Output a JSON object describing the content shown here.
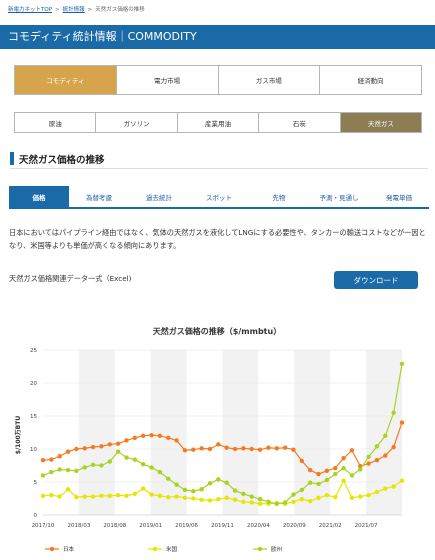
{
  "breadcrumb": {
    "items": [
      "新電力ネットTOP",
      "統計情報",
      "天然ガス価格の推移"
    ],
    "separator": ">"
  },
  "header": {
    "title": "コモディティ統計情報｜COMMODITY"
  },
  "main_tabs": [
    {
      "label": "コモディティ",
      "active": true
    },
    {
      "label": "電力市場",
      "active": false
    },
    {
      "label": "ガス市場",
      "active": false
    },
    {
      "label": "経済動向",
      "active": false
    }
  ],
  "sub_tabs": [
    {
      "label": "原油",
      "active": false
    },
    {
      "label": "ガソリン",
      "active": false
    },
    {
      "label": "産業用油",
      "active": false
    },
    {
      "label": "石炭",
      "active": false
    },
    {
      "label": "天然ガス",
      "active": true
    }
  ],
  "section": {
    "title": "天然ガス価格の推移"
  },
  "info_tabs": [
    {
      "label": "価格",
      "active": true
    },
    {
      "label": "為替考慮",
      "active": false
    },
    {
      "label": "過去統計",
      "active": false
    },
    {
      "label": "スポット",
      "active": false
    },
    {
      "label": "先物",
      "active": false
    },
    {
      "label": "予測・見通し",
      "active": false
    },
    {
      "label": "発電単価",
      "active": false
    }
  ],
  "description": "日本においてはパイプライン経由ではなく、気体の天然ガスを液化してLNGにする必要性や、タンカーの輸送コストなどが一因となり、米国等よりも単価が高くなる傾向にあります。",
  "download": {
    "label": "天然ガス価格関連データ一式（Excel)",
    "button": "ダウンロード"
  },
  "colors": {
    "primary": "#1a6aa8",
    "active_tab": "#d6a54b",
    "active_sub_tab": "#8c7d55"
  },
  "chart_data": {
    "type": "line",
    "title": "天然ガス価格の推移（$/mmbtu）",
    "ylabel": "$/100万BTU",
    "xlabel": "",
    "ylim": [
      0,
      25
    ],
    "yticks": [
      0,
      5,
      10,
      15,
      20,
      25
    ],
    "xtick_labels": [
      "2017/10",
      "2018/03",
      "2018/08",
      "2019/01",
      "2019/06",
      "2019/11",
      "2020/04",
      "2020/09",
      "2021/02",
      "2021/07"
    ],
    "legend_position": "bottom",
    "grid": true,
    "series": [
      {
        "name": "日本",
        "color": "#f47b20",
        "values": [
          8.3,
          8.4,
          8.9,
          9.6,
          10.0,
          10.1,
          10.3,
          10.4,
          10.7,
          10.8,
          11.3,
          11.7,
          12.0,
          12.1,
          12.0,
          11.7,
          11.3,
          9.8,
          9.9,
          10.1,
          10.0,
          10.7,
          10.2,
          10.0,
          10.1,
          10.0,
          9.9,
          10.2,
          10.1,
          10.2,
          9.9,
          8.2,
          6.8,
          6.2,
          6.7,
          7.1,
          8.6,
          9.8,
          7.4,
          7.8,
          8.3,
          9.0,
          10.3,
          14.0
        ]
      },
      {
        "name": "米国",
        "color": "#e6e600",
        "values": [
          2.9,
          3.0,
          2.8,
          3.9,
          2.7,
          2.8,
          2.8,
          2.9,
          2.9,
          3.0,
          2.9,
          3.2,
          4.0,
          3.1,
          2.9,
          2.7,
          2.8,
          2.6,
          2.5,
          2.3,
          2.2,
          2.4,
          2.6,
          2.3,
          2.0,
          1.9,
          1.7,
          1.7,
          1.8,
          1.7,
          2.0,
          2.4,
          2.1,
          2.6,
          3.0,
          2.7,
          5.2,
          2.6,
          2.8,
          3.0,
          3.5,
          4.0,
          4.3,
          5.2
        ]
      },
      {
        "name": "欧州",
        "color": "#a8d321",
        "values": [
          6.0,
          6.5,
          6.9,
          6.8,
          6.7,
          7.2,
          7.6,
          7.5,
          8.1,
          9.6,
          8.7,
          8.4,
          7.7,
          7.2,
          6.5,
          5.5,
          4.6,
          3.8,
          3.6,
          3.9,
          4.8,
          5.4,
          4.9,
          3.7,
          3.2,
          2.8,
          2.4,
          2.0,
          1.7,
          1.9,
          3.1,
          3.8,
          4.9,
          4.7,
          5.3,
          6.2,
          7.1,
          6.0,
          6.9,
          8.8,
          10.4,
          12.0,
          15.5,
          22.9
        ]
      }
    ]
  }
}
